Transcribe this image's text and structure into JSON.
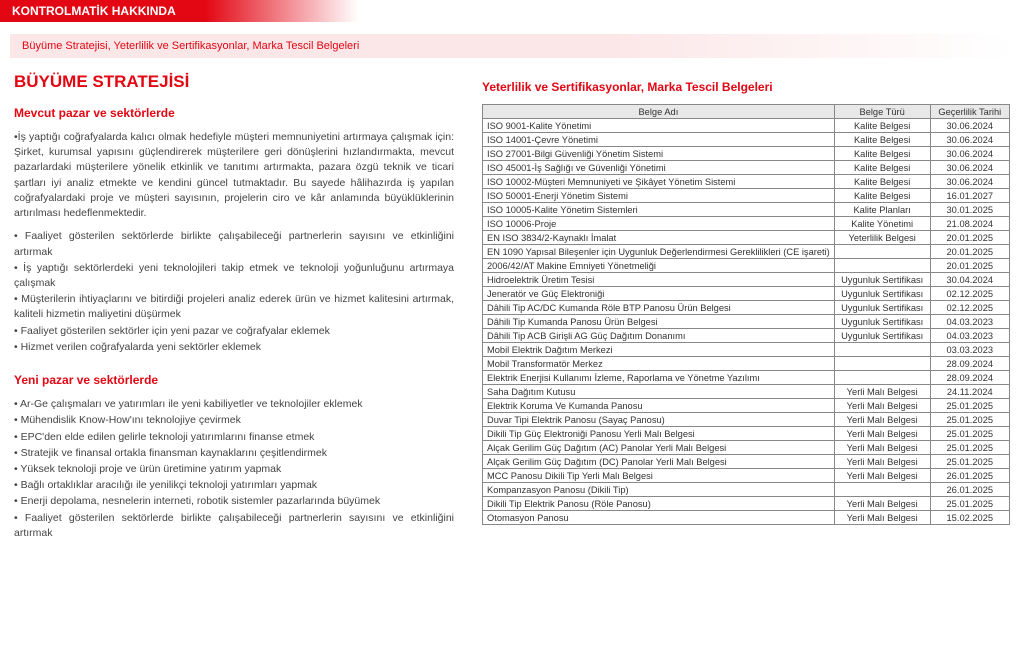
{
  "header": {
    "title": "KONTROLMATİK HAKKINDA",
    "subtitle": "Büyüme Stratejisi, Yeterlilik ve Sertifikasyonlar, Marka Tescil Belgeleri"
  },
  "left": {
    "main_heading": "BÜYÜME STRATEJİSİ",
    "sec1": {
      "heading": "Mevcut pazar ve sektörlerde",
      "paragraph": "•İş yaptığı coğrafyalarda kalıcı olmak hedefiyle müşteri memnuniyetini artırmaya çalışmak için: Şirket, kurumsal yapısını güçlendirerek müşterilere geri dönüşlerini hızlandırmakta, mevcut pazarlardaki müşterilere yönelik etkinlik ve tanıtımı artırmakta, pazara özgü teknik ve ticari şartları iyi analiz etmekte ve kendini güncel tutmaktadır. Bu sayede hâlihazırda iş yapılan coğrafyalardaki proje ve müşteri sayısının, projelerin ciro ve kâr anlamında büyüklüklerinin artırılması hedeflenmektedir.",
      "bullets": [
        "• Faaliyet gösterilen sektörlerde birlikte çalışabileceği partnerlerin sayısını ve etkinliğini artırmak",
        "• İş yaptığı sektörlerdeki yeni teknolojileri takip etmek ve teknoloji yoğunluğunu artırmaya çalışmak",
        "• Müşterilerin ihtiyaçlarını ve bitirdiği projeleri analiz ederek ürün ve hizmet kalitesini artırmak, kaliteli hizmetin maliyetini düşürmek",
        "• Faaliyet gösterilen sektörler için yeni pazar ve coğrafyalar eklemek",
        "• Hizmet verilen coğrafyalarda yeni sektörler eklemek"
      ]
    },
    "sec2": {
      "heading": "Yeni pazar ve sektörlerde",
      "bullets": [
        "• Ar-Ge çalışmaları ve yatırımları ile yeni kabiliyetler ve teknolojiler eklemek",
        "• Mühendislik Know-How'ını teknolojiye çevirmek",
        "• EPC'den elde edilen gelirle teknoloji yatırımlarını finanse etmek",
        "• Stratejik ve finansal ortakla finansman kaynaklarını çeşitlendirmek",
        "• Yüksek teknoloji proje ve ürün üretimine yatırım yapmak",
        "• Bağlı ortaklıklar aracılığı ile yenilikçi teknoloji yatırımları yapmak",
        "• Enerji depolama, nesnelerin interneti, robotik sistemler pazarlarında büyümek",
        "• Faaliyet gösterilen sektörlerde birlikte çalışabileceği partnerlerin sayısını ve etkinliğini artırmak"
      ]
    }
  },
  "right": {
    "heading": "Yeterlilik ve Sertifikasyonlar, Marka Tescil Belgeleri",
    "columns": [
      "Belge Adı",
      "Belge Türü",
      "Geçerlilik Tarihi"
    ],
    "rows": [
      [
        "ISO 9001-Kalite Yönetimi",
        "Kalite Belgesi",
        "30.06.2024"
      ],
      [
        "ISO 14001-Çevre Yönetimi",
        "Kalite Belgesi",
        "30.06.2024"
      ],
      [
        "ISO 27001-Bilgi Güvenliği Yönetim Sistemi",
        "Kalite Belgesi",
        "30.06.2024"
      ],
      [
        "ISO 45001-İş Sağlığı ve Güvenliği Yönetimi",
        "Kalite Belgesi",
        "30.06.2024"
      ],
      [
        "ISO 10002-Müşteri Memnuniyeti ve Şikâyet Yönetim Sistemi",
        "Kalite Belgesi",
        "30.06.2024"
      ],
      [
        "ISO 50001-Enerji Yönetim Sistemi",
        "Kalite Belgesi",
        "16.01.2027"
      ],
      [
        "ISO 10005-Kalite Yönetim Sistemleri",
        "Kalite Planları",
        "30.01.2025"
      ],
      [
        "ISO 10006-Proje",
        "Kalite Yönetimi",
        "21.08.2024"
      ],
      [
        "EN ISO 3834/2-Kaynaklı İmalat",
        "Yeterlilik Belgesi",
        "20.01.2025"
      ],
      [
        "EN 1090 Yapısal Bileşenler için Uygunluk Değerlendirmesi Gereklilikleri (CE işareti)",
        "",
        "20.01.2025"
      ],
      [
        "2006/42/AT Makine Emniyeti Yönetmeliği",
        "",
        "20.01.2025"
      ],
      [
        "Hidroelektrik Üretim Tesisi",
        "Uygunluk Sertifikası",
        "30.04.2024"
      ],
      [
        "Jeneratör ve Güç Elektroniği",
        "Uygunluk Sertifikası",
        "02.12.2025"
      ],
      [
        "Dâhili Tip AC/DC Kumanda Röle BTP Panosu Ürün Belgesi",
        "Uygunluk Sertifikası",
        "02.12.2025"
      ],
      [
        "Dâhili Tip Kumanda Panosu Ürün Belgesi",
        "Uygunluk Sertifikası",
        "04.03.2023"
      ],
      [
        "Dâhili Tip ACB Girişli AG Güç Dağıtım Donanımı",
        "Uygunluk Sertifikası",
        "04.03.2023"
      ],
      [
        "Mobil Elektrik Dağıtım Merkezi",
        "",
        "03.03.2023"
      ],
      [
        "Mobil Transformatör Merkez",
        "",
        "28.09.2024"
      ],
      [
        "Elektrik Enerjisi Kullanımı İzleme, Raporlama ve Yönetme Yazılımı",
        "",
        "28.09.2024"
      ],
      [
        "Saha Dağıtım Kutusu",
        "Yerli Malı Belgesi",
        "24.11.2024"
      ],
      [
        "Elektrik Koruma Ve Kumanda Panosu",
        "Yerli Malı Belgesi",
        "25.01.2025"
      ],
      [
        "Duvar Tipi Elektrik Panosu (Sayaç Panosu)",
        "Yerli Malı Belgesi",
        "25.01.2025"
      ],
      [
        "Dikili Tip Güç Elektroniği Panosu Yerli Malı Belgesi",
        "Yerli Malı Belgesi",
        "25.01.2025"
      ],
      [
        "Alçak Gerilim Güç Dağıtım (AC) Panolar Yerli Malı Belgesi",
        "Yerli Malı Belgesi",
        "25.01.2025"
      ],
      [
        "Alçak Gerilim Güç Dağıtım (DC) Panolar Yerli Malı Belgesi",
        "Yerli Malı Belgesi",
        "25.01.2025"
      ],
      [
        "MCC Panosu Dikili Tip Yerli Malı Belgesi",
        "Yerli Malı Belgesi",
        "26.01.2025"
      ],
      [
        "Kompanzasyon Panosu (Dikili Tip)",
        "",
        "26.01.2025"
      ],
      [
        "Dikili Tip Elektrik Panosu (Röle Panosu)",
        "Yerli Malı Belgesi",
        "25.01.2025"
      ],
      [
        "Otomasyon Panosu",
        "Yerli Malı Belgesi",
        "15.02.2025"
      ]
    ]
  }
}
